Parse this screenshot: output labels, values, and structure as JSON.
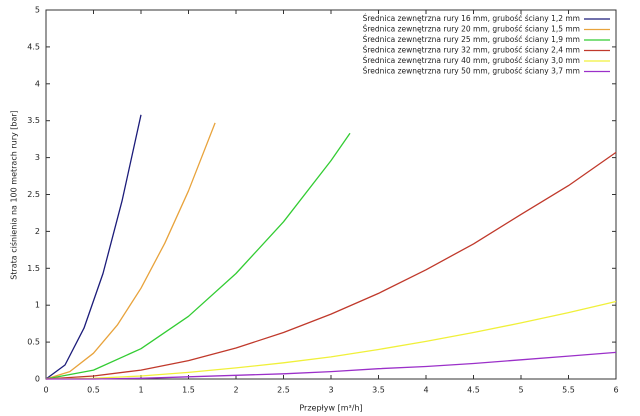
{
  "chart_data": {
    "type": "line",
    "xlabel": "Przepływ [m³/h]",
    "ylabel": "Strata ciśnienia na 100 metrach rury [bar]",
    "xlim": [
      0,
      6
    ],
    "xticks": [
      0,
      0.5,
      1,
      1.5,
      2,
      2.5,
      3,
      3.5,
      4,
      4.5,
      5,
      5.5,
      6
    ],
    "ylim": [
      0,
      5
    ],
    "yticks": [
      0,
      0.5,
      1,
      1.5,
      2,
      2.5,
      3,
      3.5,
      4,
      4.5,
      5
    ],
    "grid": false,
    "legend": "top-right",
    "series": [
      {
        "name": "Średnica zewnętrzna rury 16 mm, grubość ściany 1,2 mm",
        "color": "#1c1c7a",
        "x": [
          0,
          0.2,
          0.4,
          0.6,
          0.8,
          1.0
        ],
        "values": [
          0,
          0.19,
          0.69,
          1.43,
          2.41,
          3.58
        ]
      },
      {
        "name": "Średnica zewnętrzna rury 20 mm, grubość ściany 1,5 mm",
        "color": "#e8a33c",
        "x": [
          0,
          0.25,
          0.5,
          0.75,
          1,
          1.25,
          1.5,
          1.78
        ],
        "values": [
          0,
          0.1,
          0.35,
          0.73,
          1.23,
          1.84,
          2.55,
          3.47
        ]
      },
      {
        "name": "Średnica zewnętrzna rury 25 mm, grubość ściany 1,9 mm",
        "color": "#33cc33",
        "x": [
          0,
          0.5,
          1,
          1.5,
          2,
          2.5,
          3,
          3.2
        ],
        "values": [
          0,
          0.12,
          0.41,
          0.85,
          1.43,
          2.13,
          2.96,
          3.33
        ]
      },
      {
        "name": "Średnica zewnętrzna rury 32 mm, grubość ściany 2,4 mm",
        "color": "#c0392b",
        "x": [
          0,
          0.5,
          1,
          1.5,
          2,
          2.5,
          3,
          3.5,
          4,
          4.5,
          5,
          5.5,
          6
        ],
        "values": [
          0,
          0.04,
          0.12,
          0.25,
          0.42,
          0.63,
          0.88,
          1.16,
          1.48,
          1.83,
          2.23,
          2.62,
          3.07
        ]
      },
      {
        "name": "Średnica zewnętrzna rury 40 mm, grubość ściany 3,0 mm",
        "color": "#f0f03a",
        "x": [
          0,
          0.5,
          1,
          1.5,
          2,
          2.5,
          3,
          3.5,
          4,
          4.5,
          5,
          5.5,
          6
        ],
        "values": [
          0,
          0.01,
          0.04,
          0.09,
          0.15,
          0.22,
          0.3,
          0.4,
          0.51,
          0.63,
          0.76,
          0.9,
          1.05
        ]
      },
      {
        "name": "Średnica zewnętrzna rury 50 mm, grubość ściany 3,7 mm",
        "color": "#9b30c9",
        "x": [
          0,
          0.5,
          1,
          1.5,
          2,
          2.5,
          3,
          3.5,
          4,
          4.5,
          5,
          5.5,
          6
        ],
        "values": [
          0,
          0,
          0.01,
          0.03,
          0.05,
          0.07,
          0.1,
          0.14,
          0.17,
          0.21,
          0.26,
          0.31,
          0.36
        ]
      }
    ]
  }
}
